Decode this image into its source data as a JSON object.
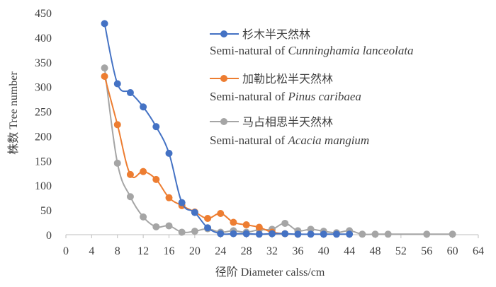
{
  "chart_data": {
    "type": "line",
    "xlabel": "径阶  Diameter calss/cm",
    "ylabel": "株数 Tree number",
    "xlim": [
      0,
      64
    ],
    "ylim": [
      0,
      450
    ],
    "xticks": [
      0,
      4,
      8,
      12,
      16,
      20,
      24,
      28,
      32,
      36,
      40,
      44,
      48,
      52,
      56,
      60,
      64
    ],
    "yticks": [
      0,
      50,
      100,
      150,
      200,
      250,
      300,
      350,
      400,
      450
    ],
    "grid": false,
    "legend_position": "top-right",
    "series": [
      {
        "name": "杉木半天然林",
        "subtitle_prefix": "Semi-natural of ",
        "subtitle_species": "Cunninghamia lanceolata",
        "color": "#4472C4",
        "x": [
          6,
          8,
          10,
          12,
          14,
          16,
          18,
          20,
          22,
          24,
          26,
          28,
          30,
          32,
          34,
          36,
          38,
          40,
          42,
          44
        ],
        "values": [
          428,
          306,
          288,
          259,
          219,
          165,
          65,
          45,
          14,
          2,
          2,
          2,
          1,
          2,
          2,
          1,
          1,
          1,
          1,
          1
        ]
      },
      {
        "name": "加勒比松半天然林",
        "subtitle_prefix": "Semi-natural of ",
        "subtitle_species": "Pinus caribaea",
        "color": "#ED7D31",
        "x": [
          6,
          8,
          10,
          12,
          14,
          16,
          18,
          20,
          22,
          24,
          26,
          28,
          30,
          32,
          34
        ],
        "values": [
          321,
          223,
          122,
          128,
          112,
          75,
          59,
          46,
          33,
          43,
          25,
          20,
          15,
          5,
          2
        ]
      },
      {
        "name": "马占相思半天然林",
        "subtitle_prefix": "Semi-natural of  ",
        "subtitle_species": "Acacia mangium",
        "color": "#A5A5A5",
        "x": [
          6,
          8,
          10,
          12,
          14,
          16,
          18,
          20,
          22,
          24,
          26,
          28,
          30,
          32,
          34,
          36,
          38,
          40,
          42,
          44,
          46,
          48,
          50,
          56,
          60
        ],
        "values": [
          338,
          145,
          77,
          36,
          16,
          18,
          5,
          7,
          12,
          5,
          8,
          5,
          10,
          11,
          23,
          8,
          11,
          7,
          4,
          8,
          1,
          1,
          1,
          1,
          1
        ]
      }
    ]
  }
}
